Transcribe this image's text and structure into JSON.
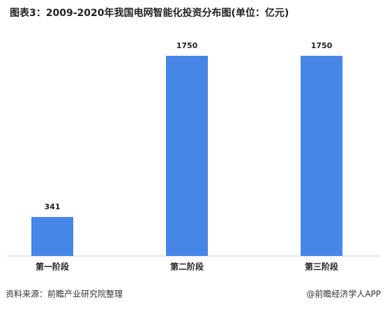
{
  "chart_data": {
    "type": "bar",
    "title": "图表3：2009-2020年我国电网智能化投资分布图(单位：亿元)",
    "categories": [
      "第一阶段",
      "第二阶段",
      "第三阶段"
    ],
    "values": [
      341,
      1750,
      1750
    ],
    "color": "#4586e6",
    "source": "资料来源：前瞻产业研究院整理",
    "credit": "@前瞻经济学人APP"
  }
}
